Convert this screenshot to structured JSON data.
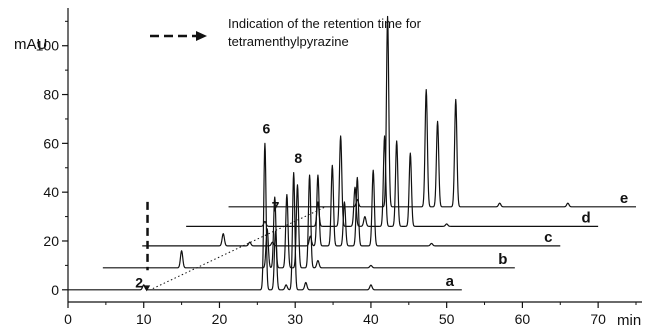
{
  "chart_data": {
    "type": "line",
    "title": "",
    "xlabel": "min",
    "ylabel": "mAU",
    "xlim": [
      0,
      75
    ],
    "ylim": [
      -5,
      113
    ],
    "x_ticks": [
      0,
      10,
      20,
      30,
      40,
      50,
      60,
      70
    ],
    "y_ticks": [
      0,
      20,
      40,
      60,
      80,
      100
    ],
    "annotation": {
      "text_line1": "Indication of the retention time for",
      "text_line2": "tetramenthylpyrazine",
      "marker_time": 10.5
    },
    "series": [
      {
        "name": "a",
        "x_offset": 0,
        "baseline": 0,
        "end_x": 52,
        "peaks": [
          [
            10,
            2
          ],
          [
            26,
            60
          ],
          [
            27.4,
            24
          ],
          [
            28.8,
            2
          ],
          [
            29.8,
            48
          ],
          [
            31.4,
            3
          ],
          [
            40,
            2
          ]
        ]
      },
      {
        "name": "b",
        "x_offset": 4.6,
        "baseline": 9,
        "end_x": 59,
        "peaks": [
          [
            15,
            7
          ],
          [
            26.3,
            16
          ],
          [
            27.3,
            29
          ],
          [
            28.9,
            30
          ],
          [
            30.3,
            34
          ],
          [
            31.9,
            38
          ],
          [
            33,
            3
          ],
          [
            40,
            1
          ]
        ]
      },
      {
        "name": "c",
        "x_offset": 9.8,
        "baseline": 18,
        "end_x": 65,
        "peaks": [
          [
            20.5,
            5
          ],
          [
            24,
            1.5
          ],
          [
            27,
            1.5
          ],
          [
            32,
            4
          ],
          [
            33,
            29
          ],
          [
            34.9,
            33
          ],
          [
            36.5,
            18
          ],
          [
            38.2,
            28
          ],
          [
            40.3,
            31
          ],
          [
            48,
            1
          ]
        ]
      },
      {
        "name": "d",
        "x_offset": 15.6,
        "baseline": 26,
        "end_x": 70,
        "peaks": [
          [
            26,
            2
          ],
          [
            33,
            10
          ],
          [
            36,
            37
          ],
          [
            37.9,
            16
          ],
          [
            39.2,
            4
          ],
          [
            41.8,
            37
          ],
          [
            43.4,
            35
          ],
          [
            45.2,
            30
          ],
          [
            50,
            1
          ]
        ]
      },
      {
        "name": "e",
        "x_offset": 21.2,
        "baseline": 34,
        "end_x": 75,
        "peaks": [
          [
            38.2,
            3
          ],
          [
            42.2,
            78
          ],
          [
            47.3,
            48
          ],
          [
            48.8,
            35
          ],
          [
            51.2,
            44
          ],
          [
            57,
            1.5
          ],
          [
            66,
            1.5
          ]
        ]
      }
    ],
    "peak_labels": [
      {
        "text": "2",
        "x": 9.4,
        "y": 1
      },
      {
        "text": "6",
        "x": 26.2,
        "y": 64
      },
      {
        "text": "7",
        "x": 27.4,
        "y": 32
      },
      {
        "text": "8",
        "x": 30.4,
        "y": 52
      }
    ]
  }
}
